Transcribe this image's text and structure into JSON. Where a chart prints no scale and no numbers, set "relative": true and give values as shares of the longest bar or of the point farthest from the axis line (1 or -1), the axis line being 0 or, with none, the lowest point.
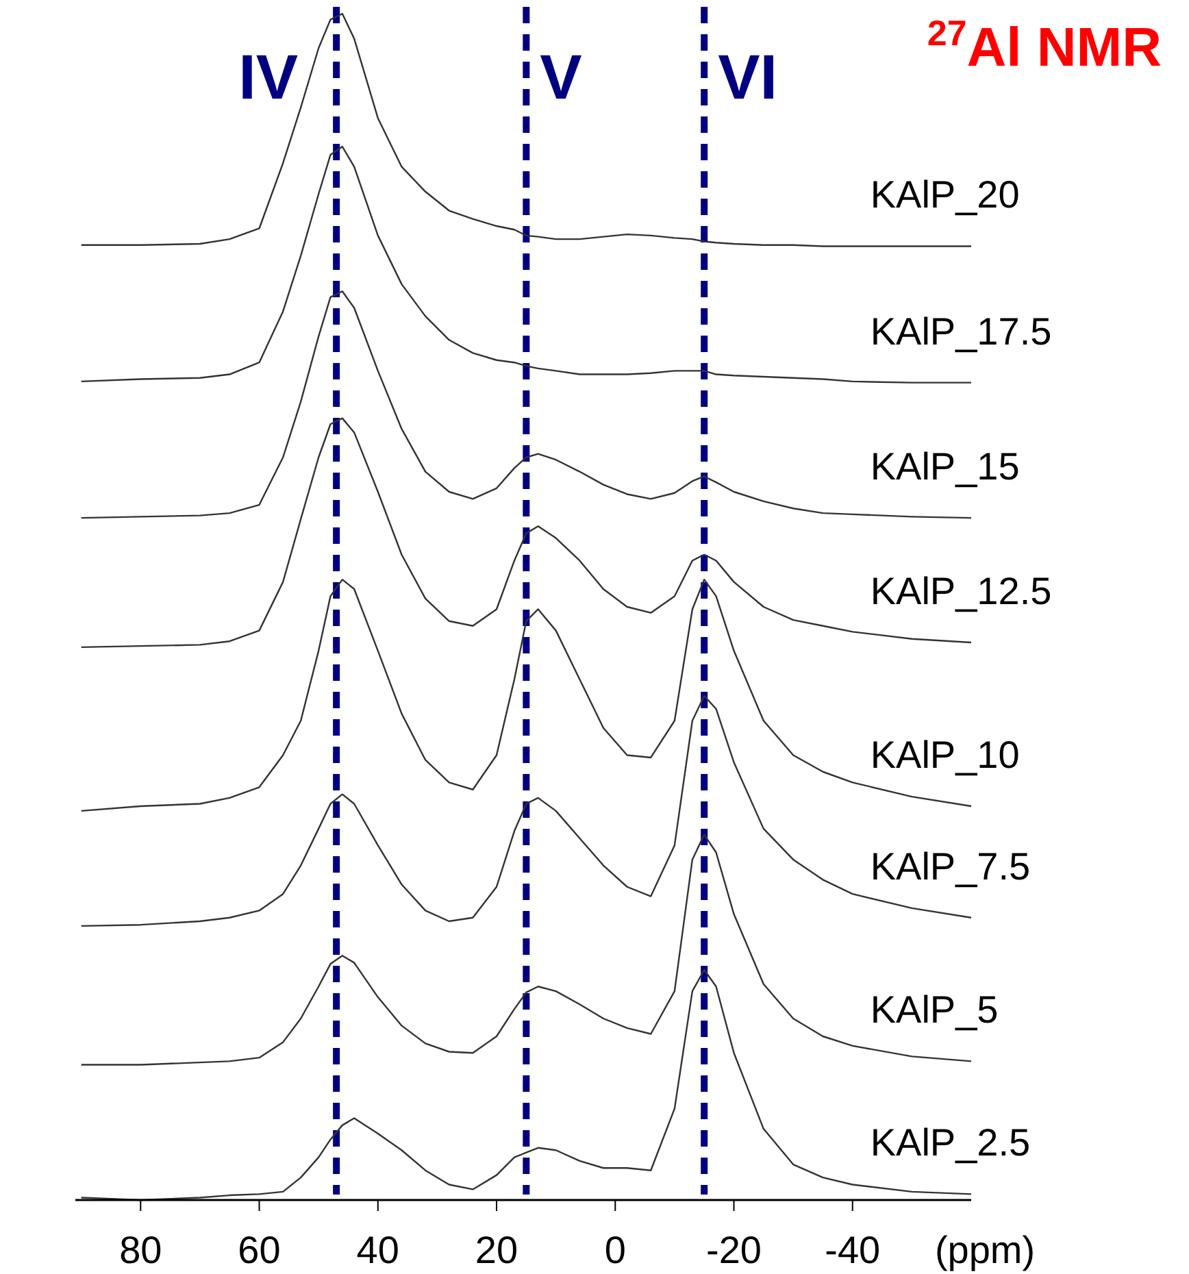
{
  "chart_data": {
    "type": "line",
    "title": "$^{27}$Al NMR",
    "xlabel": "(ppm)",
    "relative": true,
    "xlim": [
      91,
      -60
    ],
    "xticks": [
      80,
      60,
      40,
      20,
      0,
      -20,
      -40
    ],
    "x": [
      90,
      80,
      70,
      65,
      60,
      56,
      53,
      50,
      48,
      46,
      44,
      40,
      36,
      32,
      28,
      24,
      20,
      17,
      15,
      13,
      10,
      6,
      2,
      -2,
      -6,
      -10,
      -13,
      -15,
      -17,
      -20,
      -25,
      -30,
      -35,
      -40,
      -50,
      -60
    ],
    "series": [
      {
        "name": "KAlP_20",
        "color": "#333333",
        "values": [
          0.805,
          0.805,
          0.806,
          0.81,
          0.819,
          0.874,
          0.921,
          0.971,
          0.995,
          1,
          0.979,
          0.912,
          0.871,
          0.85,
          0.834,
          0.827,
          0.821,
          0.818,
          0.813,
          0.812,
          0.81,
          0.81,
          0.812,
          0.814,
          0.813,
          0.811,
          0.81,
          0.808,
          0.807,
          0.806,
          0.805,
          0.805,
          0.804,
          0.804,
          0.804,
          0.804
        ]
      },
      {
        "name": "KAlP_17.5",
        "color": "#333333",
        "values": [
          0.69,
          0.692,
          0.693,
          0.696,
          0.706,
          0.749,
          0.796,
          0.848,
          0.881,
          0.888,
          0.871,
          0.813,
          0.772,
          0.745,
          0.725,
          0.714,
          0.708,
          0.706,
          0.703,
          0.701,
          0.699,
          0.696,
          0.696,
          0.696,
          0.697,
          0.699,
          0.699,
          0.699,
          0.696,
          0.695,
          0.694,
          0.693,
          0.692,
          0.69,
          0.689,
          0.689
        ]
      },
      {
        "name": "KAlP_15",
        "color": "#333333",
        "values": [
          0.575,
          0.576,
          0.577,
          0.579,
          0.586,
          0.626,
          0.673,
          0.728,
          0.761,
          0.766,
          0.752,
          0.699,
          0.65,
          0.614,
          0.597,
          0.591,
          0.6,
          0.617,
          0.626,
          0.629,
          0.624,
          0.614,
          0.603,
          0.595,
          0.591,
          0.596,
          0.606,
          0.61,
          0.605,
          0.597,
          0.589,
          0.583,
          0.579,
          0.578,
          0.576,
          0.575
        ]
      },
      {
        "name": "KAlP_12.5",
        "color": "#333333",
        "values": [
          0.466,
          0.467,
          0.468,
          0.471,
          0.48,
          0.521,
          0.574,
          0.626,
          0.654,
          0.659,
          0.647,
          0.597,
          0.544,
          0.507,
          0.488,
          0.484,
          0.498,
          0.539,
          0.562,
          0.568,
          0.558,
          0.539,
          0.515,
          0.5,
          0.495,
          0.509,
          0.539,
          0.544,
          0.539,
          0.521,
          0.5,
          0.489,
          0.484,
          0.479,
          0.473,
          0.47
        ]
      },
      {
        "name": "KAlP_10",
        "color": "#333333",
        "values": [
          0.328,
          0.332,
          0.334,
          0.339,
          0.348,
          0.375,
          0.404,
          0.463,
          0.509,
          0.523,
          0.515,
          0.463,
          0.41,
          0.371,
          0.352,
          0.346,
          0.375,
          0.439,
          0.488,
          0.498,
          0.48,
          0.439,
          0.398,
          0.375,
          0.373,
          0.404,
          0.498,
          0.523,
          0.509,
          0.463,
          0.404,
          0.375,
          0.361,
          0.352,
          0.34,
          0.332
        ]
      },
      {
        "name": "KAlP_7.5",
        "color": "#333333",
        "values": [
          0.231,
          0.232,
          0.235,
          0.238,
          0.244,
          0.258,
          0.282,
          0.313,
          0.334,
          0.342,
          0.334,
          0.299,
          0.266,
          0.244,
          0.235,
          0.238,
          0.264,
          0.311,
          0.334,
          0.339,
          0.328,
          0.305,
          0.282,
          0.264,
          0.256,
          0.299,
          0.404,
          0.425,
          0.414,
          0.369,
          0.313,
          0.287,
          0.27,
          0.258,
          0.246,
          0.238
        ]
      },
      {
        "name": "KAlP_5",
        "color": "#333333",
        "values": [
          0.114,
          0.114,
          0.116,
          0.117,
          0.12,
          0.133,
          0.153,
          0.18,
          0.199,
          0.206,
          0.2,
          0.171,
          0.147,
          0.132,
          0.125,
          0.124,
          0.138,
          0.161,
          0.175,
          0.18,
          0.176,
          0.165,
          0.153,
          0.145,
          0.14,
          0.176,
          0.287,
          0.308,
          0.293,
          0.241,
          0.182,
          0.153,
          0.138,
          0.13,
          0.121,
          0.117
        ]
      },
      {
        "name": "KAlP_2.5",
        "color": "#333333",
        "values": [
          0.002,
          0,
          0.002,
          0.004,
          0.005,
          0.007,
          0.019,
          0.036,
          0.051,
          0.063,
          0.069,
          0.056,
          0.042,
          0.025,
          0.013,
          0.009,
          0.021,
          0.036,
          0.04,
          0.044,
          0.042,
          0.033,
          0.027,
          0.027,
          0.025,
          0.077,
          0.176,
          0.194,
          0.18,
          0.124,
          0.06,
          0.03,
          0.019,
          0.013,
          0.007,
          0.005
        ]
      }
    ],
    "ref_lines": [
      {
        "axis": "x",
        "value": 47,
        "label": "IV",
        "color": "#000080",
        "line_style": "dashed"
      },
      {
        "axis": "x",
        "value": 15,
        "label": "V",
        "color": "#000080",
        "line_style": "dashed"
      },
      {
        "axis": "x",
        "value": -15,
        "label": "VI",
        "color": "#000080",
        "line_style": "dashed"
      }
    ]
  }
}
